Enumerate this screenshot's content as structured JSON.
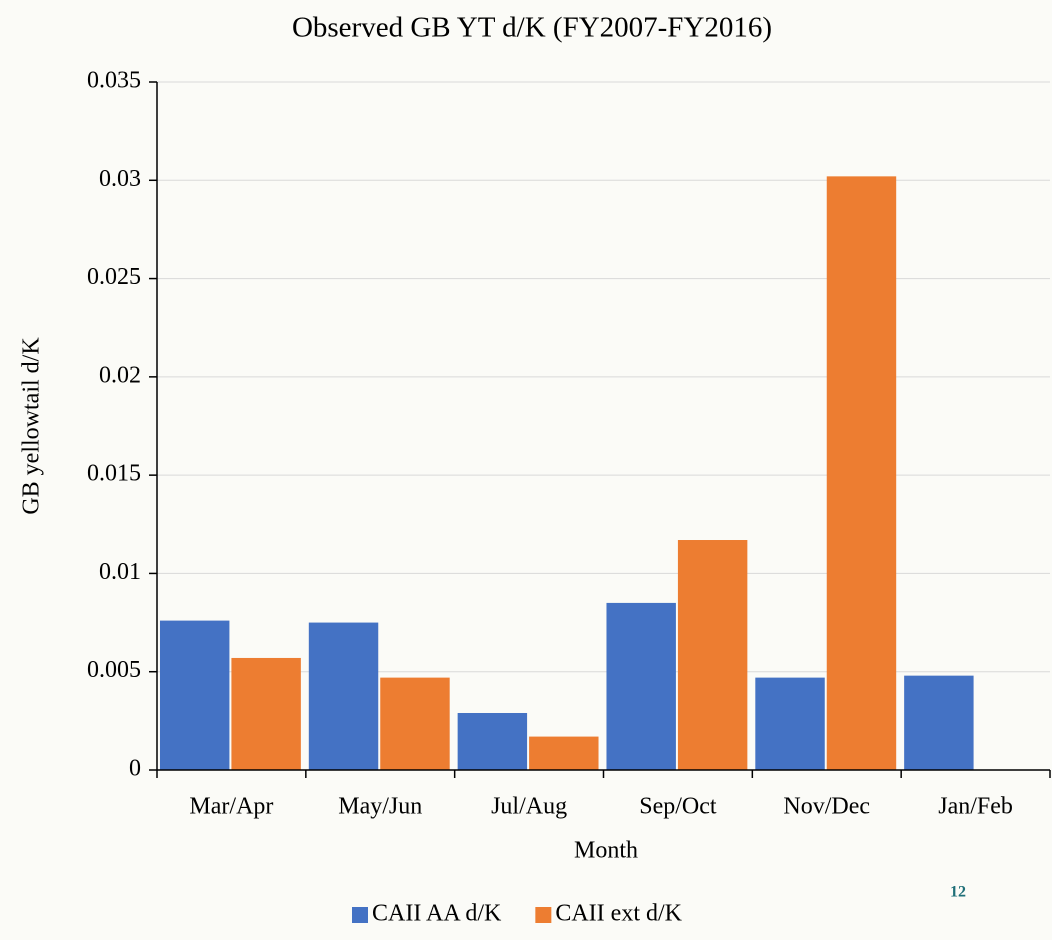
{
  "chart_data": {
    "type": "bar",
    "title": "Observed GB YT d/K (FY2007-FY2016)",
    "x_label": "Month",
    "y_label": "GB yellowtail d/K",
    "categories": [
      "Mar/Apr",
      "May/Jun",
      "Jul/Aug",
      "Sep/Oct",
      "Nov/Dec",
      "Jan/Feb"
    ],
    "series": [
      {
        "name": "CAII AA d/K",
        "color": "#4472c4",
        "values": [
          0.0076,
          0.0075,
          0.0029,
          0.0085,
          0.0047,
          0.0048
        ]
      },
      {
        "name": "CAII ext d/K",
        "color": "#ed7d31",
        "values": [
          0.0057,
          0.0047,
          0.0017,
          0.0117,
          0.0302,
          null
        ]
      }
    ],
    "ylim": [
      0,
      0.035
    ],
    "yticks": [
      0,
      0.005,
      0.01,
      0.015,
      0.02,
      0.025,
      0.03,
      0.035
    ],
    "grid": true,
    "legend": "bottom"
  },
  "page_number": "12"
}
